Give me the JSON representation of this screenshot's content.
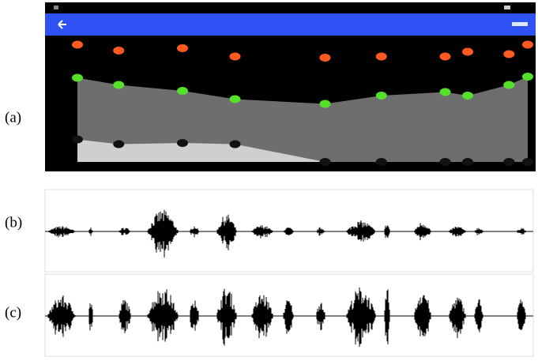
{
  "panel_labels": [
    "(a)",
    "(b)",
    "(c)"
  ],
  "chart_data": {
    "type": "scatter-area",
    "x": [
      0,
      1.1,
      2.8,
      4.2,
      6.6,
      8.1,
      9.8,
      10.4,
      11.5,
      12
    ],
    "xlim": [
      0,
      12
    ],
    "ylim": [
      0,
      100
    ],
    "series": [
      {
        "color": "#ff5a1f",
        "values": [
          99,
          94,
          96,
          89,
          88,
          89,
          89,
          93,
          91,
          99
        ]
      },
      {
        "color": "#55e02a",
        "fill": "#6e6e6e",
        "values": [
          71,
          65,
          60,
          53,
          49,
          56,
          59,
          56,
          65,
          72
        ]
      },
      {
        "color": "#111111",
        "fill": "#cfcfcf",
        "values": [
          19,
          15,
          16,
          15,
          0,
          0,
          0,
          0,
          0,
          0
        ]
      }
    ]
  }
}
